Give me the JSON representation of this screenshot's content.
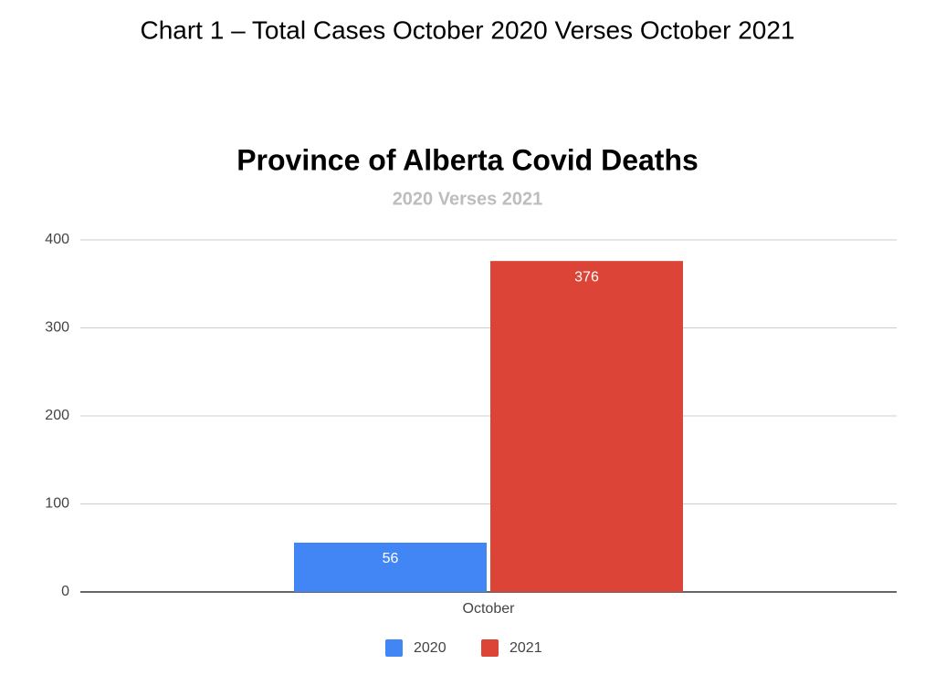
{
  "caption": "Chart 1 – Total Cases October 2020 Verses October 2021",
  "chart_data": {
    "type": "bar",
    "title": "Province of Alberta Covid Deaths",
    "subtitle": "2020 Verses 2021",
    "categories": [
      "October"
    ],
    "series": [
      {
        "name": "2020",
        "color": "#4285f4",
        "values": [
          56
        ]
      },
      {
        "name": "2021",
        "color": "#db4437",
        "values": [
          376
        ]
      }
    ],
    "ylim": [
      0,
      400
    ],
    "yticks": [
      0,
      100,
      200,
      300,
      400
    ],
    "grid": true,
    "legend": "bottom"
  }
}
